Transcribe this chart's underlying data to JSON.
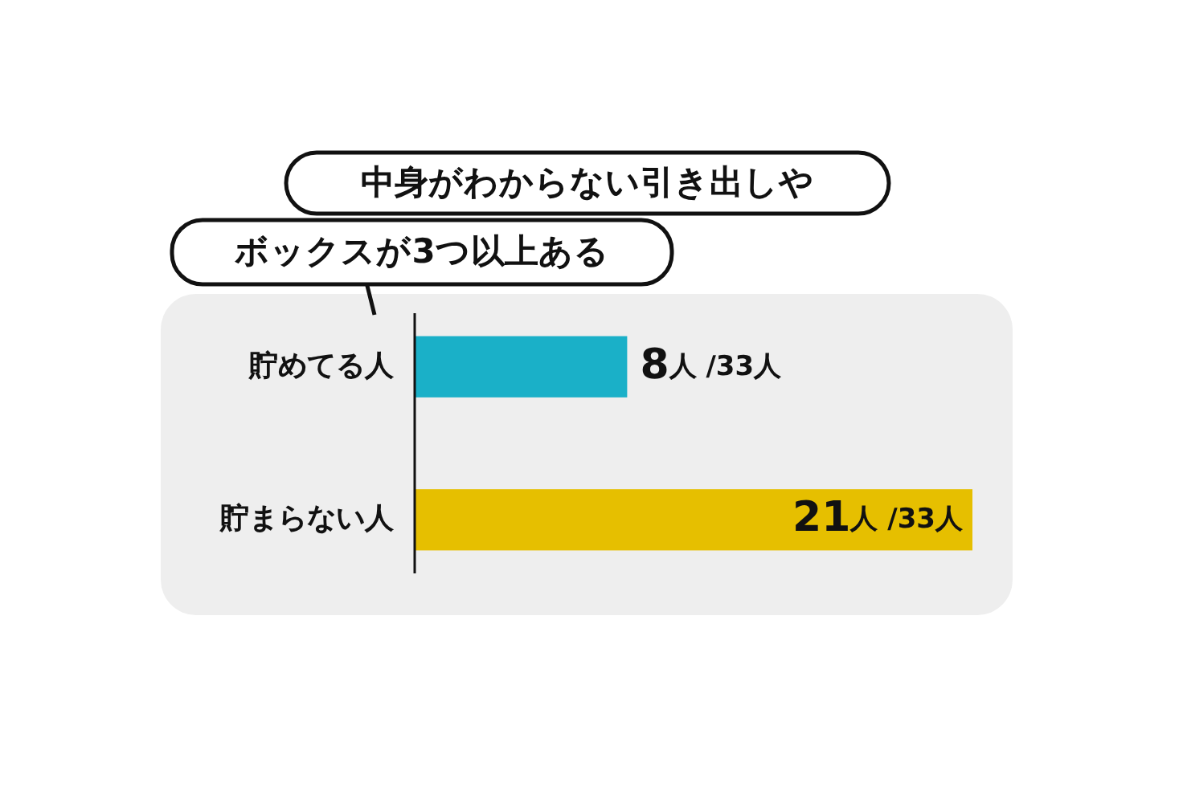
{
  "chart_data": {
    "type": "bar",
    "orientation": "horizontal",
    "title": "中身がわからない引き出しやボックスが3つ以上ある",
    "categories": [
      "貯めてる人",
      "貯まらない人"
    ],
    "values": [
      8,
      21
    ],
    "colors": [
      "#1ab0c8",
      "#e6bf00"
    ],
    "value_labels": [
      "8人 /33人",
      "21人 /33人"
    ]
  }
}
